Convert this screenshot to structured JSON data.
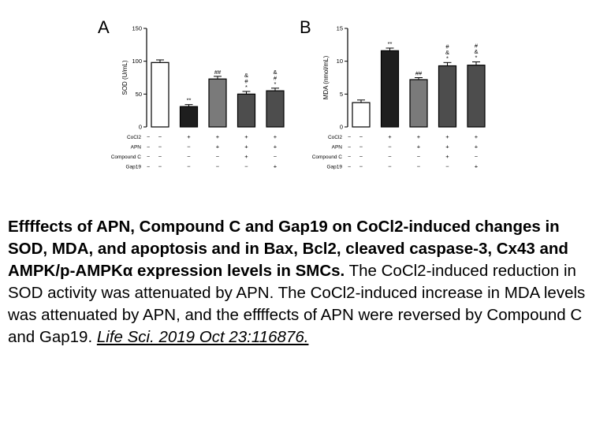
{
  "colors": {
    "control": "#ffffff",
    "cocl2": "#1e1e1e",
    "apn": "#7a7a7a",
    "compound_c": "#4d4d4d",
    "gap19": "#4d4d4d",
    "axis": "#000000"
  },
  "treatment_table": {
    "row_labels": [
      "CoCl2",
      "APN",
      "Compound C",
      "Gap19"
    ],
    "rows": [
      [
        "−",
        "+",
        "+",
        "+",
        "+"
      ],
      [
        "−",
        "−",
        "+",
        "+",
        "+"
      ],
      [
        "−",
        "−",
        "−",
        "+",
        "−"
      ],
      [
        "−",
        "−",
        "−",
        "−",
        "+"
      ]
    ]
  },
  "chart_data": [
    {
      "type": "bar",
      "panel_label": "A",
      "ylabel": "SOD (U/mL)",
      "ylim": [
        0,
        150
      ],
      "yticks": [
        0,
        50,
        100,
        150
      ],
      "values": [
        98,
        31,
        73,
        50,
        55
      ],
      "errors": [
        4,
        3,
        4,
        4,
        4
      ],
      "annotations": [
        "",
        "**",
        "##",
        "&\n#\n*",
        "&\n#\n*"
      ]
    },
    {
      "type": "bar",
      "panel_label": "B",
      "ylabel": "MDA (nmol/mL)",
      "ylim": [
        0,
        15
      ],
      "yticks": [
        0,
        5,
        10,
        15
      ],
      "values": [
        3.7,
        11.6,
        7.2,
        9.3,
        9.4
      ],
      "errors": [
        0.4,
        0.4,
        0.3,
        0.5,
        0.5
      ],
      "annotations": [
        "",
        "**",
        "##",
        "#\n&\n*",
        "#\n&\n*"
      ]
    }
  ],
  "caption": {
    "bold": "Effffects of APN, Compound C and Gap19 on CoCl2-induced changes in SOD, MDA, and apoptosis and in Bax, Bcl2, cleaved caspase-3, Cx43 and AMPK/p-AMPKα expression levels in SMCs.",
    "body": "The CoCl2-induced reduction in SOD activity was attenuated by APN. The CoCl2-induced increase in MDA levels was attenuated by APN, and the effffects of APN were reversed by Compound C and Gap19.",
    "citation": "Life Sci. 2019 Oct 23:116876."
  }
}
